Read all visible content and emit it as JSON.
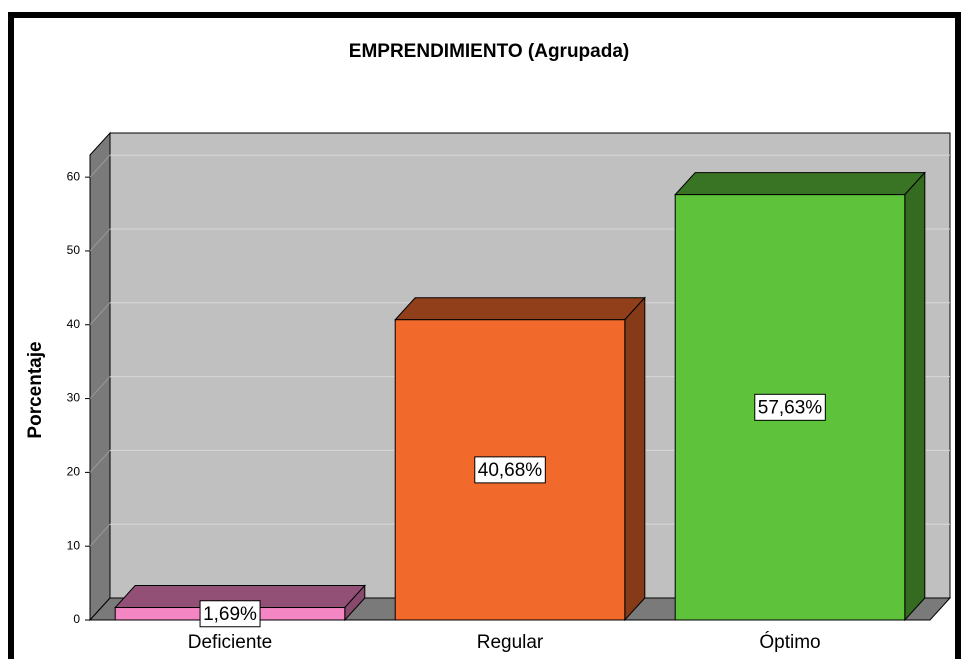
{
  "chart_data": {
    "type": "bar3d",
    "title": "EMPRENDIMIENTO (Agrupada)",
    "y_label": "Porcentaje",
    "categories": [
      "Deficiente",
      "Regular",
      "Óptimo"
    ],
    "values": [
      1.69,
      40.68,
      57.63
    ],
    "value_labels": [
      "1,69%",
      "40,68%",
      "57,63%"
    ],
    "colors": [
      "#f586c4",
      "#f2692c",
      "#5ec23a"
    ],
    "ylim": [
      0,
      63
    ],
    "yticks": [
      0,
      10,
      20,
      30,
      40,
      50,
      60
    ],
    "grid": true
  }
}
